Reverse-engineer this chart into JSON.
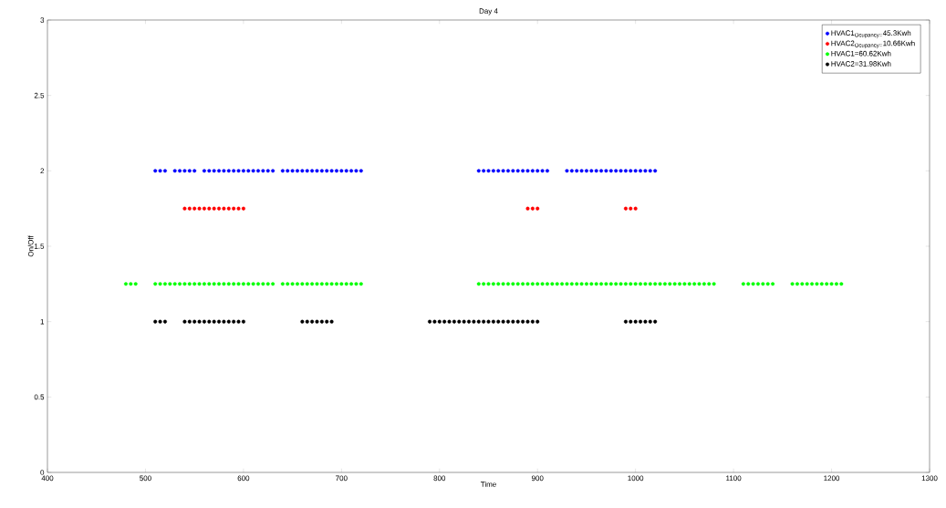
{
  "chart_data": {
    "type": "scatter",
    "title": "Day 4",
    "xlabel": "Time",
    "ylabel": "On/Off",
    "xlim": [
      400,
      1300
    ],
    "ylim": [
      0,
      3
    ],
    "xticks": [
      400,
      500,
      600,
      700,
      800,
      900,
      1000,
      1100,
      1200,
      1300
    ],
    "yticks": [
      0,
      0.5,
      1,
      1.5,
      2,
      2.5,
      3
    ],
    "grid": false,
    "legend": "top right",
    "marker": "circle",
    "series": [
      {
        "name": "HVAC1$_{Ocupancy=}$45.3Kwh",
        "color": "#0000ff",
        "x": [
          510,
          515,
          520,
          530,
          535,
          540,
          545,
          550,
          560,
          565,
          570,
          575,
          580,
          585,
          590,
          595,
          600,
          605,
          610,
          615,
          620,
          625,
          630,
          640,
          645,
          650,
          655,
          660,
          665,
          670,
          675,
          680,
          685,
          690,
          695,
          700,
          705,
          710,
          715,
          720,
          840,
          845,
          850,
          855,
          860,
          865,
          870,
          875,
          880,
          885,
          890,
          895,
          900,
          905,
          910,
          930,
          935,
          940,
          945,
          950,
          955,
          960,
          965,
          970,
          975,
          980,
          985,
          990,
          995,
          1000,
          1005,
          1010,
          1015,
          1020
        ],
        "values": [
          2,
          2,
          2,
          2,
          2,
          2,
          2,
          2,
          2,
          2,
          2,
          2,
          2,
          2,
          2,
          2,
          2,
          2,
          2,
          2,
          2,
          2,
          2,
          2,
          2,
          2,
          2,
          2,
          2,
          2,
          2,
          2,
          2,
          2,
          2,
          2,
          2,
          2,
          2,
          2,
          2,
          2,
          2,
          2,
          2,
          2,
          2,
          2,
          2,
          2,
          2,
          2,
          2,
          2,
          2,
          2,
          2,
          2,
          2,
          2,
          2,
          2,
          2,
          2,
          2,
          2,
          2,
          2,
          2,
          2,
          2,
          2,
          2,
          2
        ]
      },
      {
        "name": "HVAC2$_{Ocupancy=}$10.66Kwh",
        "color": "#ff0000",
        "x": [
          540,
          545,
          550,
          555,
          560,
          565,
          570,
          575,
          580,
          585,
          590,
          595,
          600,
          890,
          895,
          900,
          990,
          995,
          1000
        ],
        "values": [
          1.75,
          1.75,
          1.75,
          1.75,
          1.75,
          1.75,
          1.75,
          1.75,
          1.75,
          1.75,
          1.75,
          1.75,
          1.75,
          1.75,
          1.75,
          1.75,
          1.75,
          1.75,
          1.75
        ]
      },
      {
        "name": "HVAC1=60.62Kwh",
        "color": "#00ff00",
        "x": [
          480,
          485,
          490,
          510,
          515,
          520,
          525,
          530,
          535,
          540,
          545,
          550,
          555,
          560,
          565,
          570,
          575,
          580,
          585,
          590,
          595,
          600,
          605,
          610,
          615,
          620,
          625,
          630,
          640,
          645,
          650,
          655,
          660,
          665,
          670,
          675,
          680,
          685,
          690,
          695,
          700,
          705,
          710,
          715,
          720,
          840,
          845,
          850,
          855,
          860,
          865,
          870,
          875,
          880,
          885,
          890,
          895,
          900,
          905,
          910,
          915,
          920,
          925,
          930,
          935,
          940,
          945,
          950,
          955,
          960,
          965,
          970,
          975,
          980,
          985,
          990,
          995,
          1000,
          1005,
          1010,
          1015,
          1020,
          1025,
          1030,
          1035,
          1040,
          1045,
          1050,
          1055,
          1060,
          1065,
          1070,
          1075,
          1080,
          1110,
          1115,
          1120,
          1125,
          1130,
          1135,
          1140,
          1160,
          1165,
          1170,
          1175,
          1180,
          1185,
          1190,
          1195,
          1200,
          1205,
          1210
        ],
        "values": [
          1.25,
          1.25,
          1.25,
          1.25,
          1.25,
          1.25,
          1.25,
          1.25,
          1.25,
          1.25,
          1.25,
          1.25,
          1.25,
          1.25,
          1.25,
          1.25,
          1.25,
          1.25,
          1.25,
          1.25,
          1.25,
          1.25,
          1.25,
          1.25,
          1.25,
          1.25,
          1.25,
          1.25,
          1.25,
          1.25,
          1.25,
          1.25,
          1.25,
          1.25,
          1.25,
          1.25,
          1.25,
          1.25,
          1.25,
          1.25,
          1.25,
          1.25,
          1.25,
          1.25,
          1.25,
          1.25,
          1.25,
          1.25,
          1.25,
          1.25,
          1.25,
          1.25,
          1.25,
          1.25,
          1.25,
          1.25,
          1.25,
          1.25,
          1.25,
          1.25,
          1.25,
          1.25,
          1.25,
          1.25,
          1.25,
          1.25,
          1.25,
          1.25,
          1.25,
          1.25,
          1.25,
          1.25,
          1.25,
          1.25,
          1.25,
          1.25,
          1.25,
          1.25,
          1.25,
          1.25,
          1.25,
          1.25,
          1.25,
          1.25,
          1.25,
          1.25,
          1.25,
          1.25,
          1.25,
          1.25,
          1.25,
          1.25,
          1.25,
          1.25,
          1.25,
          1.25,
          1.25,
          1.25,
          1.25,
          1.25,
          1.25,
          1.25,
          1.25,
          1.25,
          1.25,
          1.25,
          1.25,
          1.25,
          1.25,
          1.25,
          1.25,
          1.25
        ]
      },
      {
        "name": "HVAC2=31.98Kwh",
        "color": "#000000",
        "x": [
          510,
          515,
          520,
          540,
          545,
          550,
          555,
          560,
          565,
          570,
          575,
          580,
          585,
          590,
          595,
          600,
          660,
          665,
          670,
          675,
          680,
          685,
          690,
          790,
          795,
          800,
          805,
          810,
          815,
          820,
          825,
          830,
          835,
          840,
          845,
          850,
          855,
          860,
          865,
          870,
          875,
          880,
          885,
          890,
          895,
          900,
          990,
          995,
          1000,
          1005,
          1010,
          1015,
          1020
        ],
        "values": [
          1,
          1,
          1,
          1,
          1,
          1,
          1,
          1,
          1,
          1,
          1,
          1,
          1,
          1,
          1,
          1,
          1,
          1,
          1,
          1,
          1,
          1,
          1,
          1,
          1,
          1,
          1,
          1,
          1,
          1,
          1,
          1,
          1,
          1,
          1,
          1,
          1,
          1,
          1,
          1,
          1,
          1,
          1,
          1,
          1,
          1,
          1,
          1,
          1,
          1,
          1,
          1,
          1
        ]
      }
    ]
  }
}
